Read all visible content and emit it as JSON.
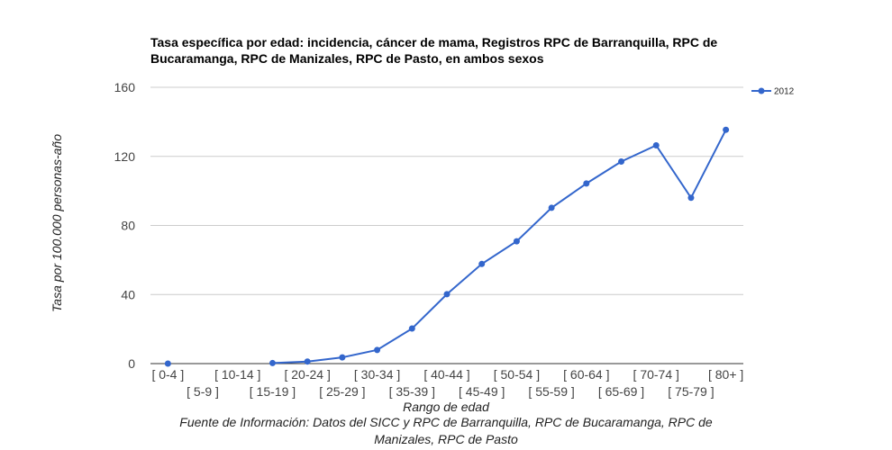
{
  "chart_data": {
    "type": "line",
    "title_line1": "Tasa específica por edad: incidencia, cáncer de mama, Registros RPC de Barranquilla, RPC de",
    "title_line2": "Bucaramanga, RPC de Manizales, RPC de Pasto, en ambos sexos",
    "xlabel": "Rango de edad",
    "ylabel": "Tasa por 100.000 personas-año",
    "source_line1": "Fuente de Información: Datos del SICC   y RPC de Barranquilla, RPC de Bucaramanga, RPC de",
    "source_line2": "Manizales, RPC de Pasto",
    "categories": [
      "[ 0-4 ]",
      "[ 5-9 ]",
      "[ 10-14 ]",
      "[ 15-19 ]",
      "[ 20-24 ]",
      "[ 25-29 ]",
      "[ 30-34 ]",
      "[ 35-39 ]",
      "[ 40-44 ]",
      "[ 45-49 ]",
      "[ 50-54 ]",
      "[ 55-59 ]",
      "[ 60-64 ]",
      "[ 65-69 ]",
      "[ 70-74 ]",
      "[ 75-79 ]",
      "[ 80+  ]"
    ],
    "series": [
      {
        "name": "2012",
        "color": "#3366cc",
        "values": [
          0,
          null,
          null,
          0.3,
          1.2,
          3.6,
          7.9,
          20.3,
          40.2,
          57.7,
          70.8,
          90.2,
          104.3,
          117.0,
          126.4,
          96.0,
          135.4
        ]
      }
    ],
    "yticks": [
      0,
      40,
      80,
      120,
      160
    ],
    "ylim": [
      0,
      160
    ],
    "grid": true,
    "legend_position": "right"
  }
}
